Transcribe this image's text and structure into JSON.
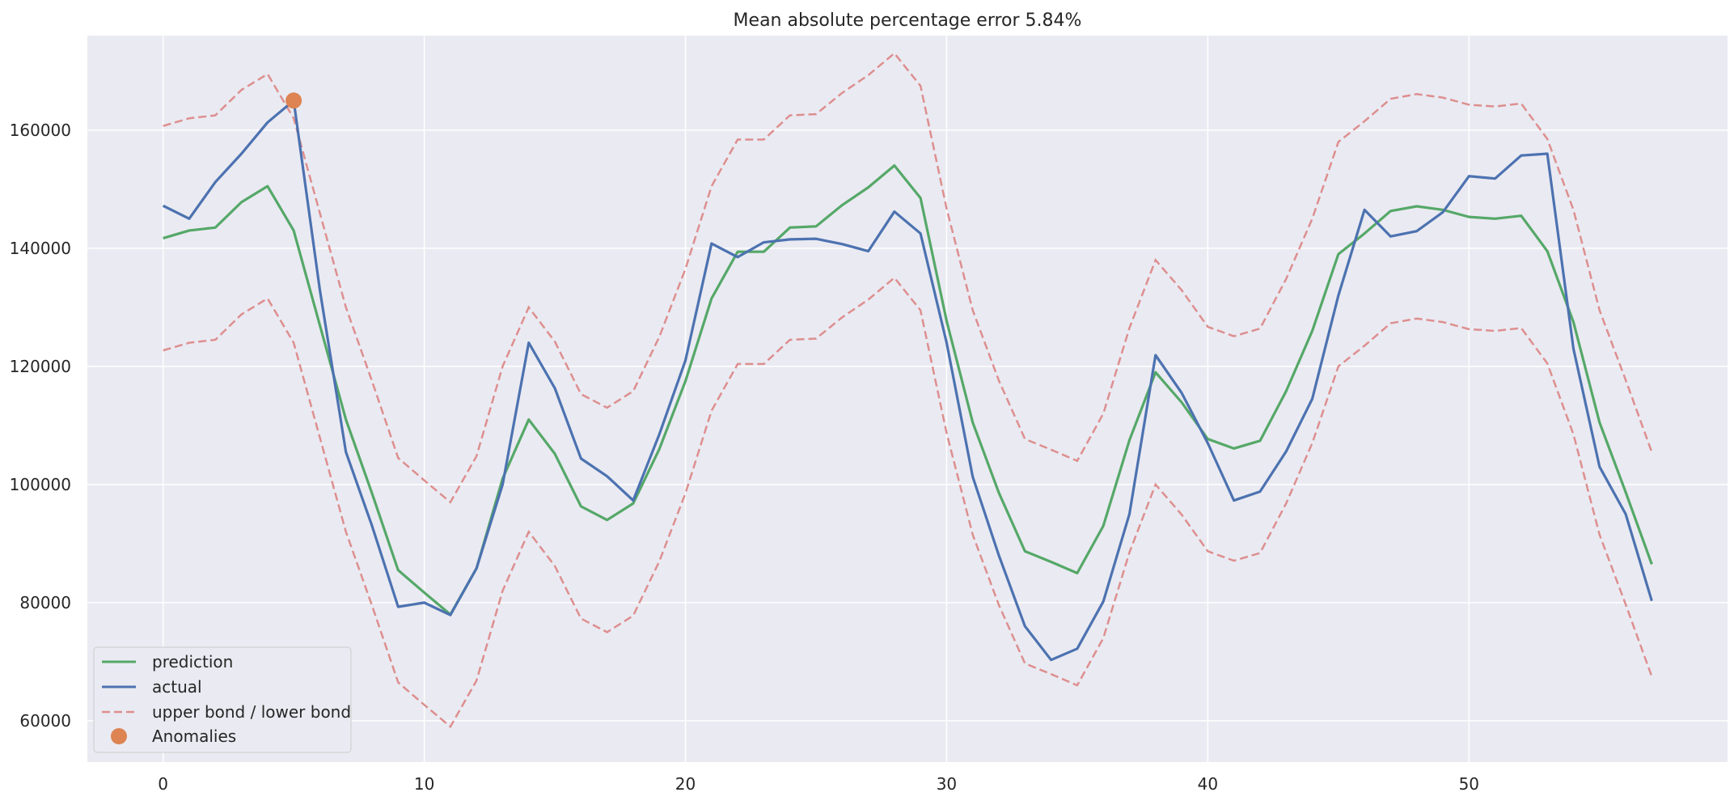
{
  "chart_data": {
    "type": "line",
    "title": "Mean absolute percentage error 5.84%",
    "xlabel": "",
    "ylabel": "",
    "xlim": [
      -2.9,
      59.9
    ],
    "ylim": [
      53000,
      176000
    ],
    "xticks": [
      0,
      10,
      20,
      30,
      40,
      50
    ],
    "yticks": [
      60000,
      80000,
      100000,
      120000,
      140000,
      160000
    ],
    "grid": true,
    "legend_position": "lower-left",
    "colors": {
      "prediction": "#55a868",
      "actual": "#4c72b0",
      "bounds": "#dd8f8f",
      "anomalies": "#dd8452",
      "background": "#eaeaf2",
      "grid": "#ffffff"
    },
    "series": [
      {
        "name": "prediction",
        "style": "solid",
        "values": [
          141700,
          143000,
          143500,
          147800,
          150500,
          143000,
          127000,
          111000,
          98500,
          85500,
          81700,
          78000,
          85800,
          101000,
          111000,
          105200,
          96300,
          94000,
          96800,
          106000,
          117500,
          131500,
          139400,
          139400,
          143500,
          143700,
          147300,
          150300,
          154000,
          148500,
          127700,
          110500,
          98600,
          88700,
          86900,
          85000,
          93000,
          107500,
          119000,
          113900,
          107700,
          106100,
          107400,
          115800,
          126000,
          139000,
          142500,
          146300,
          147100,
          146500,
          145300,
          145000,
          145500,
          139500,
          127500,
          110500,
          98700,
          86500
        ]
      },
      {
        "name": "actual",
        "style": "solid",
        "values": [
          147200,
          145000,
          151200,
          156000,
          161300,
          165000,
          133000,
          105500,
          93000,
          79300,
          80000,
          77900,
          85800,
          100000,
          124000,
          116300,
          104400,
          101400,
          97300,
          108500,
          121000,
          140800,
          138500,
          141000,
          141500,
          141600,
          140700,
          139500,
          146200,
          142500,
          124000,
          101300,
          88000,
          76000,
          70300,
          72200,
          80200,
          95000,
          121900,
          115500,
          107000,
          97300,
          98800,
          105600,
          114500,
          132000,
          146500,
          142000,
          142900,
          146100,
          152200,
          151800,
          155700,
          156000,
          123000,
          103000,
          95000,
          80300
        ]
      },
      {
        "name": "upper bond / lower bond",
        "style": "dashed",
        "upper": [
          160700,
          162000,
          162500,
          166800,
          169500,
          162000,
          146000,
          130000,
          117500,
          104500,
          100700,
          97000,
          104800,
          120000,
          130000,
          124200,
          115300,
          113000,
          115800,
          125000,
          136500,
          150500,
          158400,
          158400,
          162500,
          162700,
          166300,
          169300,
          173000,
          167500,
          146700,
          129500,
          117600,
          107700,
          105900,
          104000,
          112000,
          126500,
          138000,
          132900,
          126700,
          125100,
          126400,
          134800,
          145000,
          158000,
          161500,
          165300,
          166100,
          165500,
          164300,
          164000,
          164500,
          158500,
          146500,
          129500,
          117700,
          105500
        ],
        "lower": [
          122700,
          124000,
          124500,
          128800,
          131500,
          124000,
          108000,
          92000,
          79500,
          66500,
          62700,
          59000,
          66800,
          82000,
          92000,
          86200,
          77300,
          75000,
          77800,
          87000,
          98500,
          112500,
          120400,
          120400,
          124500,
          124700,
          128300,
          131300,
          135000,
          129500,
          108700,
          91500,
          79600,
          69700,
          67900,
          66000,
          74000,
          88500,
          100000,
          94900,
          88700,
          87100,
          88400,
          96800,
          107000,
          120000,
          123500,
          127300,
          128100,
          127500,
          126300,
          126000,
          126500,
          120500,
          108500,
          91500,
          79700,
          67500
        ]
      },
      {
        "name": "Anomalies",
        "style": "marker",
        "points": [
          {
            "x": 5,
            "y": 165000
          }
        ]
      }
    ]
  }
}
